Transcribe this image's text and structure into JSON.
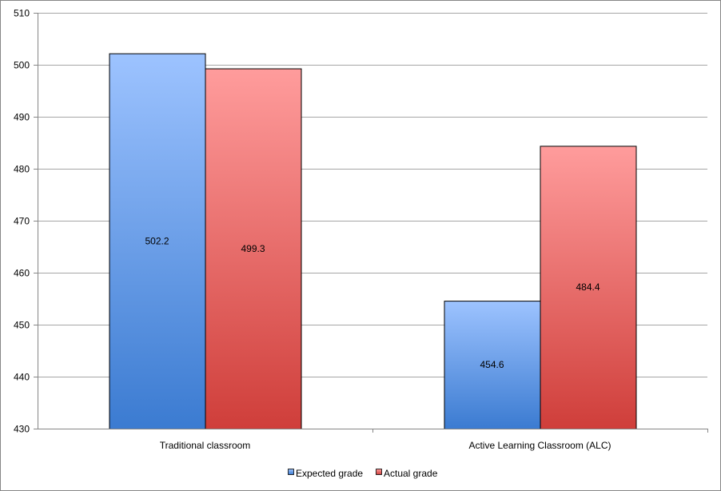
{
  "chart_data": {
    "type": "bar",
    "title": "",
    "xlabel": "",
    "ylabel": "",
    "categories": [
      "Traditional classroom",
      "Active Learning Classroom  (ALC)"
    ],
    "series": [
      {
        "name": "Expected grade",
        "values": [
          502.2,
          454.6
        ],
        "labels": [
          "502.2",
          "454.6"
        ]
      },
      {
        "name": "Actual grade",
        "values": [
          499.3,
          484.4
        ],
        "labels": [
          "499.3",
          "484.4"
        ]
      }
    ],
    "ylim": [
      430,
      510
    ],
    "yticks": [
      "430",
      "440",
      "450",
      "460",
      "470",
      "480",
      "490",
      "500",
      "510"
    ],
    "grid": true,
    "legend_position": "bottom",
    "colors": {
      "expected_top": "#9dc3ff",
      "expected_bottom": "#3b7bd1",
      "actual_top": "#ff9c9c",
      "actual_bottom": "#cf3e3a",
      "grid": "#a6a6a6",
      "axis": "#868686"
    }
  }
}
